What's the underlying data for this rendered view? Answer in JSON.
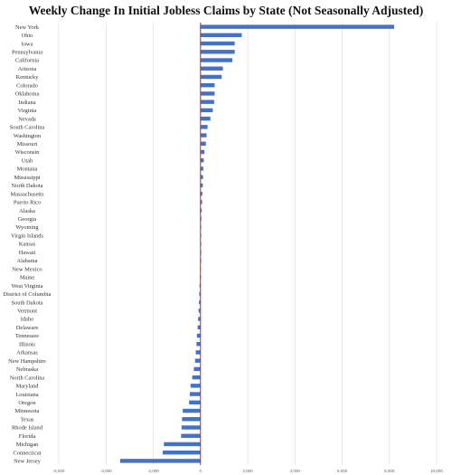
{
  "title": "Weekly Change In Initial Jobless Claims by State (Not Seasonally Adjusted)",
  "colors": {
    "bar": "#4472c4",
    "zero_line": "#e0201b",
    "grid": "#d9d9d9"
  },
  "chart_data": {
    "type": "bar",
    "orientation": "horizontal",
    "title": "Weekly Change In Initial Jobless Claims by State (Not Seasonally Adjusted)",
    "xlabel": "",
    "ylabel": "",
    "xlim": [
      -6000,
      10000
    ],
    "x_ticks": [
      -6000,
      -4000,
      -2000,
      0,
      2000,
      4000,
      6000,
      8000,
      10000
    ],
    "x_tick_labels": [
      "-6,000",
      "-4,000",
      "-2,000",
      "0",
      "2,000",
      "4,000",
      "6,000",
      "8,000",
      "10,000"
    ],
    "grid": "vertical",
    "legend": "none",
    "categories": [
      "New York",
      "Ohio",
      "Iowa",
      "Pennsylvania",
      "California",
      "Arizona",
      "Kentucky",
      "Colorado",
      "Oklahoma",
      "Indiana",
      "Virginia",
      "Nevada",
      "South Carolina",
      "Washington",
      "Missouri",
      "Wisconsin",
      "Utah",
      "Montana",
      "Mississippi",
      "North Dakota",
      "Massachusetts",
      "Puerto Rico",
      "Alaska",
      "Georgia",
      "Wyoming",
      "Virgin Islands",
      "Kansas",
      "Hawaii",
      "Alabama",
      "New Mexico",
      "Maine",
      "West Virginia",
      "District of Columbia",
      "South Dakota",
      "Vermont",
      "Idaho",
      "Delaware",
      "Tennessee",
      "Illinois",
      "Arkansas",
      "New Hampshire",
      "Nebraska",
      "North Carolina",
      "Maryland",
      "Louisiana",
      "Oregon",
      "Minnesota",
      "Texas",
      "Rhode Island",
      "Florida",
      "Michigan",
      "Connecticut",
      "New Jersey"
    ],
    "values": [
      8200,
      1750,
      1450,
      1450,
      1350,
      950,
      900,
      600,
      600,
      580,
      520,
      420,
      300,
      260,
      230,
      170,
      140,
      120,
      110,
      100,
      80,
      70,
      50,
      40,
      30,
      20,
      20,
      15,
      10,
      -20,
      -30,
      -40,
      -50,
      -60,
      -80,
      -100,
      -120,
      -150,
      -170,
      -200,
      -230,
      -280,
      -350,
      -420,
      -450,
      -480,
      -750,
      -780,
      -800,
      -820,
      -1550,
      -1600,
      -3400
    ]
  }
}
